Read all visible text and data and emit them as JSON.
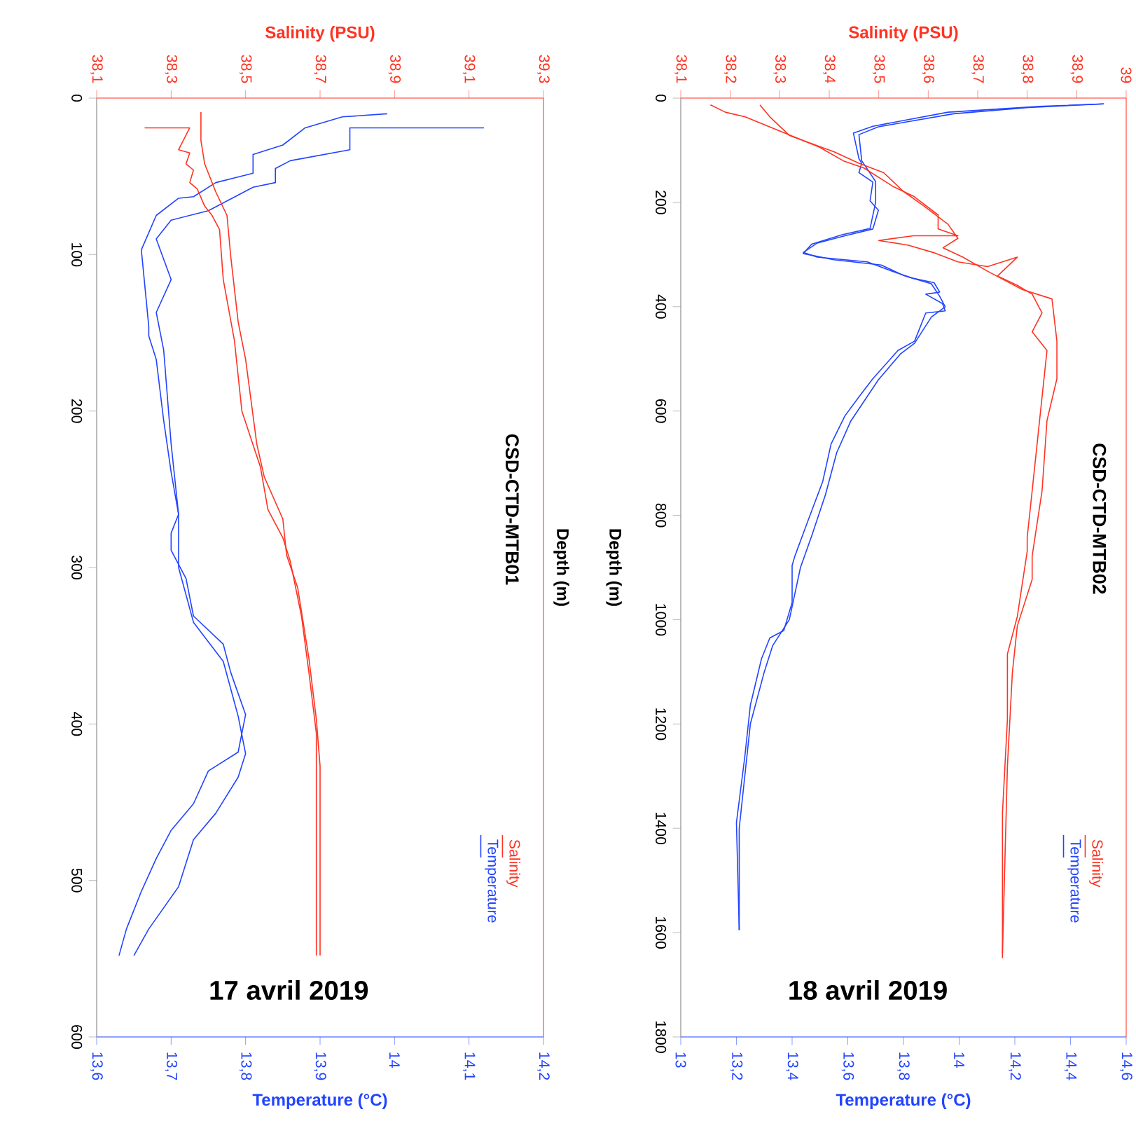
{
  "chart_data": [
    {
      "type": "line",
      "title": "CSD-CTD-MTB01",
      "annotations": [
        "17 avril 2019"
      ],
      "xlabel": "Temperature (°C)",
      "x2label": "Salinity (PSU)",
      "ylabel": "Depth (m)",
      "legend": "bottom right",
      "xlim": [
        13.6,
        14.2
      ],
      "xticks": [
        {
          "value": 13.6,
          "label": "13,6"
        },
        {
          "value": 13.7,
          "label": "13,7"
        },
        {
          "value": 13.8,
          "label": "13,8"
        },
        {
          "value": 13.9,
          "label": "13,9"
        },
        {
          "value": 14,
          "label": "14"
        },
        {
          "value": 14.1,
          "label": "14,1"
        },
        {
          "value": 14.2,
          "label": "14,2"
        }
      ],
      "x2lim": [
        38.1,
        39.3
      ],
      "x2ticks": [
        {
          "value": 38.1,
          "label": "38,1"
        },
        {
          "value": 38.3,
          "label": "38,3"
        },
        {
          "value": 38.5,
          "label": "38,5"
        },
        {
          "value": 38.7,
          "label": "38,7"
        },
        {
          "value": 38.9,
          "label": "38,9"
        },
        {
          "value": 39.1,
          "label": "39,1"
        },
        {
          "value": 39.3,
          "label": "39,3"
        }
      ],
      "ylim": [
        600,
        0
      ],
      "yticks": [
        0,
        100,
        200,
        300,
        400,
        500,
        600
      ],
      "series": [
        {
          "name": "Salinity",
          "color": "#ff3322",
          "axis": "x2",
          "x": [
            38.35,
            38.23,
            38.35,
            38.32,
            38.35,
            38.34,
            38.36,
            38.35,
            38.37,
            38.39,
            38.41,
            38.43,
            38.44,
            38.47,
            38.49,
            38.54,
            38.56,
            38.6,
            38.62,
            38.65,
            38.67,
            38.69,
            38.69
          ],
          "values": [
            19,
            19,
            19,
            33,
            35,
            42,
            46,
            54,
            58,
            69,
            75,
            84,
            116,
            155,
            200,
            236,
            263,
            281,
            296,
            331,
            367,
            406,
            548
          ]
        },
        {
          "color": "#ff3322",
          "axis": "x2",
          "x": [
            38.38,
            38.38,
            38.39,
            38.42,
            38.45,
            38.46,
            38.48,
            38.5,
            38.53,
            38.55,
            38.6,
            38.61,
            38.64,
            38.67,
            38.69,
            38.7,
            38.7
          ],
          "values": [
            9,
            27,
            42,
            60,
            75,
            101,
            143,
            167,
            221,
            242,
            269,
            292,
            313,
            358,
            397,
            427,
            548
          ]
        },
        {
          "name": "Temperature",
          "color": "#2244ff",
          "x": [
            13.99,
            13.93,
            13.88,
            13.85,
            13.81,
            13.81,
            13.76,
            13.73,
            13.71,
            13.68,
            13.66,
            13.67,
            13.67,
            13.68,
            13.69,
            13.7,
            13.71,
            13.7,
            13.7,
            13.72,
            13.73,
            13.77,
            13.78,
            13.8,
            13.79,
            13.75,
            13.73,
            13.7,
            13.68,
            13.66,
            13.64,
            13.63
          ],
          "values": [
            10,
            12,
            19,
            30,
            36,
            48,
            54,
            63,
            64,
            75,
            97,
            146,
            152,
            167,
            206,
            239,
            266,
            278,
            289,
            307,
            331,
            349,
            367,
            394,
            418,
            430,
            451,
            468,
            486,
            507,
            531,
            548
          ]
        },
        {
          "color": "#2244ff",
          "x": [
            14.12,
            13.94,
            13.94,
            13.86,
            13.84,
            13.84,
            13.81,
            13.75,
            13.7,
            13.68,
            13.7,
            13.68,
            13.69,
            13.7,
            13.71,
            13.71,
            13.73,
            13.77,
            13.79,
            13.8,
            13.79,
            13.76,
            13.73,
            13.71,
            13.67,
            13.65,
            13.65
          ],
          "values": [
            19,
            19,
            33,
            40,
            45,
            54,
            57,
            72,
            78,
            90,
            116,
            137,
            161,
            221,
            266,
            300,
            335,
            360,
            395,
            419,
            434,
            457,
            474,
            504,
            531,
            548,
            548
          ]
        }
      ]
    },
    {
      "type": "line",
      "title": "CSD-CTD-MTB02",
      "annotations": [
        "18 avril 2019"
      ],
      "xlabel": "Temperature (°C)",
      "x2label": "Salinity (PSU)",
      "ylabel": "Depth (m)",
      "legend": "bottom right",
      "xlim": [
        13,
        14.6
      ],
      "xticks": [
        13,
        {
          "value": 13.2,
          "label": "13,2"
        },
        {
          "value": 13.4,
          "label": "13,4"
        },
        {
          "value": 13.6,
          "label": "13,6"
        },
        {
          "value": 13.8,
          "label": "13,8"
        },
        14,
        {
          "value": 14.2,
          "label": "14,2"
        },
        {
          "value": 14.4,
          "label": "14,4"
        },
        {
          "value": 14.6,
          "label": "14,6"
        }
      ],
      "x2lim": [
        38.1,
        39
      ],
      "x2ticks": [
        {
          "value": 38.1,
          "label": "38,1"
        },
        {
          "value": 38.2,
          "label": "38,2"
        },
        {
          "value": 38.3,
          "label": "38,3"
        },
        {
          "value": 38.4,
          "label": "38,4"
        },
        {
          "value": 38.5,
          "label": "38,5"
        },
        {
          "value": 38.6,
          "label": "38,6"
        },
        {
          "value": 38.7,
          "label": "38,7"
        },
        {
          "value": 38.8,
          "label": "38,8"
        },
        {
          "value": 38.9,
          "label": "38,9"
        },
        39
      ],
      "ylim": [
        1800,
        0
      ],
      "yticks": [
        0,
        200,
        400,
        600,
        800,
        1000,
        1200,
        1400,
        1600,
        1800
      ],
      "series": [
        {
          "name": "Salinity",
          "color": "#ff3322",
          "axis": "x2",
          "x": [
            38.16,
            38.19,
            38.23,
            38.3,
            38.38,
            38.43,
            38.47,
            38.53,
            38.57,
            38.62,
            38.62,
            38.66,
            38.57,
            38.5,
            38.56,
            38.61,
            38.66,
            38.72,
            38.78,
            38.74,
            38.78,
            38.81,
            38.83,
            38.81,
            38.84,
            38.83,
            38.82,
            38.81,
            38.8,
            38.8,
            38.78,
            38.76,
            38.76,
            38.75,
            38.75
          ],
          "values": [
            13,
            27,
            36,
            63,
            94,
            121,
            134,
            170,
            188,
            224,
            251,
            264,
            264,
            273,
            282,
            296,
            314,
            323,
            305,
            341,
            359,
            376,
            412,
            448,
            484,
            573,
            663,
            753,
            842,
            869,
            994,
            1066,
            1191,
            1371,
            1649
          ]
        },
        {
          "color": "#ff3322",
          "axis": "x2",
          "x": [
            38.26,
            38.28,
            38.32,
            38.41,
            38.46,
            38.51,
            38.55,
            38.59,
            38.64,
            38.66,
            38.63,
            38.67,
            38.72,
            38.79,
            38.85,
            38.86,
            38.86,
            38.84,
            38.83,
            38.81,
            38.81,
            38.78,
            38.77,
            38.76,
            38.75
          ],
          "values": [
            13,
            36,
            72,
            103,
            125,
            143,
            179,
            206,
            242,
            269,
            287,
            305,
            332,
            367,
            385,
            466,
            538,
            618,
            753,
            878,
            923,
            1012,
            1102,
            1281,
            1640
          ]
        },
        {
          "name": "Temperature",
          "color": "#2244ff",
          "x": [
            14.52,
            14.29,
            13.96,
            13.69,
            13.62,
            13.64,
            13.65,
            13.64,
            13.69,
            13.68,
            13.71,
            13.69,
            13.59,
            13.49,
            13.44,
            13.49,
            13.67,
            13.76,
            13.83,
            13.91,
            13.93,
            13.88,
            13.94,
            13.95,
            13.88,
            13.84,
            13.78,
            13.69,
            13.64,
            13.59,
            13.54,
            13.51,
            13.46,
            13.41,
            13.4,
            13.4,
            13.37,
            13.32,
            13.29,
            13.25,
            13.23,
            13.2,
            13.21
          ],
          "values": [
            11,
            16,
            27,
            54,
            67,
            116,
            125,
            143,
            161,
            197,
            215,
            251,
            264,
            278,
            296,
            305,
            314,
            332,
            345,
            354,
            372,
            376,
            394,
            408,
            412,
            466,
            484,
            538,
            573,
            609,
            663,
            735,
            806,
            878,
            896,
            967,
            1021,
            1035,
            1075,
            1164,
            1263,
            1389,
            1595
          ]
        },
        {
          "color": "#2244ff",
          "x": [
            14.52,
            14.25,
            13.98,
            13.71,
            13.64,
            13.65,
            13.7,
            13.7,
            13.68,
            13.58,
            13.47,
            13.44,
            13.55,
            13.72,
            13.8,
            13.9,
            13.93,
            13.95,
            13.9,
            13.84,
            13.79,
            13.71,
            13.66,
            13.61,
            13.56,
            13.52,
            13.47,
            13.43,
            13.39,
            13.33,
            13.3,
            13.25,
            13.21,
            13.21
          ],
          "values": [
            11,
            18,
            30,
            55,
            70,
            120,
            160,
            200,
            250,
            262,
            280,
            298,
            310,
            320,
            340,
            356,
            380,
            400,
            420,
            470,
            490,
            540,
            580,
            620,
            680,
            760,
            840,
            900,
            1000,
            1050,
            1100,
            1200,
            1400,
            1595
          ]
        }
      ]
    }
  ]
}
